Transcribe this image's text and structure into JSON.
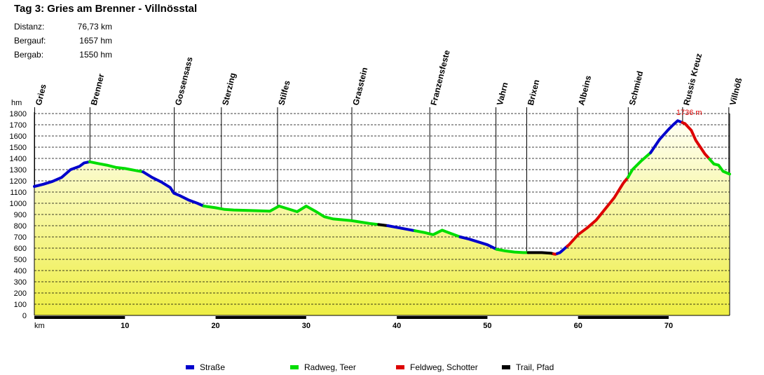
{
  "header": {
    "title": "Tag 3: Gries am Brenner - Villnösstal",
    "stats": [
      {
        "label": "Distanz:",
        "value": "76,73 km"
      },
      {
        "label": "Bergauf:",
        "value": "1657 hm"
      },
      {
        "label": "Bergab:",
        "value": "1550 hm"
      }
    ]
  },
  "chart_data": {
    "type": "area",
    "x_unit": "km",
    "y_unit": "hm",
    "xlim": [
      0,
      76.73
    ],
    "ylim": [
      0,
      1800
    ],
    "y_ticks": [
      0,
      100,
      200,
      300,
      400,
      500,
      600,
      700,
      800,
      900,
      1000,
      1100,
      1200,
      1300,
      1400,
      1500,
      1600,
      1700,
      1800
    ],
    "x_ticks": [
      10,
      20,
      30,
      40,
      50,
      60,
      70
    ],
    "grid": "horizontal-dashed",
    "max_annotation": {
      "x": 71,
      "y": 1736,
      "label": "1736 m"
    },
    "waypoints": [
      {
        "name": "Gries",
        "km": 0
      },
      {
        "name": "Brenner",
        "km": 6.1
      },
      {
        "name": "Gossensass",
        "km": 15.4
      },
      {
        "name": "Sterzing",
        "km": 20.6
      },
      {
        "name": "Stilfes",
        "km": 26.8
      },
      {
        "name": "Grasstein",
        "km": 35.0
      },
      {
        "name": "Franzensfeste",
        "km": 43.6
      },
      {
        "name": "Vahrn",
        "km": 50.9
      },
      {
        "name": "Brixen",
        "km": 54.3
      },
      {
        "name": "Albeins",
        "km": 59.9
      },
      {
        "name": "Schmied",
        "km": 65.5
      },
      {
        "name": "Russis Kreuz",
        "km": 71.5
      },
      {
        "name": "Villnöß",
        "km": 76.6
      }
    ],
    "profile": [
      [
        0,
        1150
      ],
      [
        1,
        1170
      ],
      [
        2,
        1195
      ],
      [
        3,
        1230
      ],
      [
        4,
        1300
      ],
      [
        5,
        1330
      ],
      [
        5.5,
        1360
      ],
      [
        6.1,
        1370
      ],
      [
        7,
        1355
      ],
      [
        8,
        1340
      ],
      [
        9,
        1320
      ],
      [
        10,
        1310
      ],
      [
        11,
        1295
      ],
      [
        12,
        1280
      ],
      [
        13,
        1230
      ],
      [
        14,
        1190
      ],
      [
        15,
        1140
      ],
      [
        15.4,
        1090
      ],
      [
        16,
        1070
      ],
      [
        17,
        1030
      ],
      [
        18,
        1000
      ],
      [
        18.7,
        975
      ],
      [
        20,
        960
      ],
      [
        21,
        945
      ],
      [
        22,
        940
      ],
      [
        24,
        935
      ],
      [
        26,
        930
      ],
      [
        27,
        975
      ],
      [
        28,
        950
      ],
      [
        29,
        925
      ],
      [
        30,
        975
      ],
      [
        31,
        930
      ],
      [
        32,
        880
      ],
      [
        33,
        860
      ],
      [
        35,
        845
      ],
      [
        37,
        820
      ],
      [
        39,
        800
      ],
      [
        41,
        770
      ],
      [
        43,
        740
      ],
      [
        44,
        720
      ],
      [
        45,
        760
      ],
      [
        46,
        730
      ],
      [
        47,
        700
      ],
      [
        48,
        680
      ],
      [
        49,
        655
      ],
      [
        50,
        630
      ],
      [
        51,
        590
      ],
      [
        52,
        575
      ],
      [
        53,
        565
      ],
      [
        54,
        560
      ],
      [
        55,
        560
      ],
      [
        56,
        560
      ],
      [
        57,
        555
      ],
      [
        57.5,
        545
      ],
      [
        58,
        560
      ],
      [
        59,
        630
      ],
      [
        60,
        720
      ],
      [
        61,
        780
      ],
      [
        62,
        850
      ],
      [
        63,
        950
      ],
      [
        64,
        1050
      ],
      [
        65,
        1180
      ],
      [
        65.5,
        1230
      ],
      [
        66,
        1300
      ],
      [
        67,
        1380
      ],
      [
        68,
        1450
      ],
      [
        69,
        1570
      ],
      [
        70,
        1660
      ],
      [
        70.5,
        1700
      ],
      [
        71,
        1736
      ],
      [
        71.8,
        1710
      ],
      [
        72.5,
        1650
      ],
      [
        73,
        1560
      ],
      [
        74,
        1440
      ],
      [
        75,
        1350
      ],
      [
        75.5,
        1340
      ],
      [
        76,
        1285
      ],
      [
        76.73,
        1260
      ]
    ],
    "surface_segments": [
      {
        "from": 0,
        "to": 6.1,
        "type": "strasse"
      },
      {
        "from": 6.1,
        "to": 12,
        "type": "radweg"
      },
      {
        "from": 12,
        "to": 18.7,
        "type": "strasse"
      },
      {
        "from": 18.7,
        "to": 27,
        "type": "radweg"
      },
      {
        "from": 27,
        "to": 38,
        "type": "radweg"
      },
      {
        "from": 38,
        "to": 39,
        "type": "trail"
      },
      {
        "from": 39,
        "to": 42,
        "type": "strasse"
      },
      {
        "from": 42,
        "to": 47,
        "type": "radweg"
      },
      {
        "from": 47,
        "to": 51,
        "type": "strasse"
      },
      {
        "from": 51,
        "to": 54.5,
        "type": "radweg"
      },
      {
        "from": 54.5,
        "to": 57.3,
        "type": "trail"
      },
      {
        "from": 57.3,
        "to": 57.7,
        "type": "feldweg"
      },
      {
        "from": 57.7,
        "to": 58.8,
        "type": "strasse"
      },
      {
        "from": 58.8,
        "to": 65.5,
        "type": "feldweg"
      },
      {
        "from": 65.5,
        "to": 68,
        "type": "radweg"
      },
      {
        "from": 68,
        "to": 71.5,
        "type": "strasse"
      },
      {
        "from": 71.5,
        "to": 74.5,
        "type": "feldweg"
      },
      {
        "from": 74.5,
        "to": 76.73,
        "type": "radweg"
      }
    ],
    "legend": [
      {
        "key": "strasse",
        "label": "Straße",
        "color": "#0000cc"
      },
      {
        "key": "radweg",
        "label": "Radweg, Teer",
        "color": "#00dd00"
      },
      {
        "key": "feldweg",
        "label": "Feldweg, Schotter",
        "color": "#dd0000"
      },
      {
        "key": "trail",
        "label": "Trail, Pfad",
        "color": "#000000"
      }
    ],
    "colors": {
      "fill_top": "#fffff4",
      "fill_bottom": "#eeee44",
      "grid": "#000000",
      "annotation": "#dd0000"
    }
  }
}
